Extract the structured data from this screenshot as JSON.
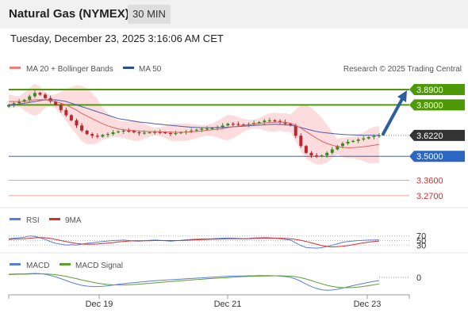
{
  "header": {
    "title": "Natural Gas (NYMEX)",
    "timeframe": "30 MIN"
  },
  "datetime": "Tuesday, December 23, 2025 3:16:06 AM CET",
  "legend": {
    "ma20": "MA 20 + Bollinger Bands",
    "ma50": "MA 50",
    "copyright": "Research © 2025 Trading Central"
  },
  "colors": {
    "resistance": "#4e9a06",
    "support": "#2b66c4",
    "target": "#d62d2d",
    "current": "#333333",
    "candle_up": "#3a8a22",
    "candle_down": "#b7282e",
    "ma20": "#e06060",
    "ma50": "#4a5fa8",
    "bands": "#fbd6d6",
    "rsi": "#5b7fd6",
    "rsi_ma": "#d62d2d",
    "macd": "#5b7fd6",
    "macd_signal": "#5ca02f",
    "arrow": "#2b5f9e"
  },
  "chart_data": [
    {
      "type": "line",
      "title": "",
      "x_ticks": [
        "Dec 19",
        "Dec 21",
        "Dec 23"
      ],
      "ylim": [
        3.2,
        3.95
      ],
      "levels": [
        {
          "label": "3.8900",
          "value": 3.89,
          "kind": "resistance"
        },
        {
          "label": "3.8000",
          "value": 3.8,
          "kind": "resistance"
        },
        {
          "label": "3.6220",
          "value": 3.622,
          "kind": "current"
        },
        {
          "label": "3.5000",
          "value": 3.5,
          "kind": "support"
        },
        {
          "label": "3.3600",
          "value": 3.36,
          "kind": "target"
        },
        {
          "label": "3.2700",
          "value": 3.27,
          "kind": "target"
        }
      ],
      "price": [
        3.8,
        3.81,
        3.82,
        3.83,
        3.85,
        3.87,
        3.86,
        3.84,
        3.82,
        3.8,
        3.77,
        3.74,
        3.71,
        3.68,
        3.65,
        3.63,
        3.62,
        3.615,
        3.625,
        3.63,
        3.64,
        3.645,
        3.65,
        3.648,
        3.64,
        3.635,
        3.638,
        3.64,
        3.642,
        3.64,
        3.636,
        3.632,
        3.635,
        3.64,
        3.645,
        3.65,
        3.655,
        3.66,
        3.662,
        3.665,
        3.67,
        3.68,
        3.69,
        3.688,
        3.686,
        3.684,
        3.688,
        3.694,
        3.7,
        3.708,
        3.71,
        3.706,
        3.7,
        3.69,
        3.68,
        3.62,
        3.56,
        3.52,
        3.505,
        3.5,
        3.505,
        3.52,
        3.54,
        3.56,
        3.575,
        3.585,
        3.59,
        3.598,
        3.604,
        3.612,
        3.618,
        3.622
      ],
      "series": [
        {
          "name": "MA 20 + Bollinger Bands",
          "values": [
            3.82,
            3.82,
            3.82,
            3.82,
            3.825,
            3.83,
            3.83,
            3.83,
            3.825,
            3.82,
            3.81,
            3.8,
            3.785,
            3.77,
            3.75,
            3.735,
            3.72,
            3.705,
            3.69,
            3.678,
            3.668,
            3.66,
            3.655,
            3.652,
            3.65,
            3.648,
            3.646,
            3.645,
            3.644,
            3.643,
            3.642,
            3.641,
            3.64,
            3.64,
            3.641,
            3.643,
            3.645,
            3.648,
            3.652,
            3.655,
            3.658,
            3.662,
            3.667,
            3.672,
            3.676,
            3.68,
            3.684,
            3.688,
            3.692,
            3.695,
            3.698,
            3.699,
            3.7,
            3.698,
            3.693,
            3.68,
            3.665,
            3.645,
            3.625,
            3.605,
            3.588,
            3.575,
            3.565,
            3.557,
            3.552,
            3.55,
            3.551,
            3.553,
            3.556,
            3.56,
            3.565,
            3.57
          ]
        },
        {
          "name": "MA 50",
          "values": [
            3.8,
            3.8,
            3.805,
            3.81,
            3.815,
            3.82,
            3.825,
            3.83,
            3.83,
            3.83,
            3.825,
            3.82,
            3.81,
            3.8,
            3.79,
            3.78,
            3.77,
            3.76,
            3.75,
            3.74,
            3.73,
            3.72,
            3.715,
            3.71,
            3.705,
            3.7,
            3.697,
            3.694,
            3.69,
            3.687,
            3.684,
            3.681,
            3.678,
            3.675,
            3.672,
            3.67,
            3.668,
            3.667,
            3.667,
            3.667,
            3.668,
            3.669,
            3.67,
            3.672,
            3.674,
            3.676,
            3.678,
            3.68,
            3.682,
            3.684,
            3.686,
            3.686,
            3.686,
            3.684,
            3.682,
            3.676,
            3.668,
            3.66,
            3.652,
            3.645,
            3.64,
            3.636,
            3.633,
            3.63,
            3.628,
            3.626,
            3.625,
            3.624,
            3.623,
            3.622,
            3.622,
            3.622
          ]
        }
      ]
    },
    {
      "type": "line",
      "title": "",
      "ylim": [
        0,
        100
      ],
      "y_ticks": [
        70,
        50,
        30
      ],
      "series": [
        {
          "name": "RSI",
          "values": [
            58,
            60,
            62,
            64,
            70,
            68,
            62,
            55,
            45,
            38,
            34,
            30,
            32,
            30,
            34,
            38,
            40,
            43,
            46,
            48,
            50,
            51,
            52,
            50,
            48,
            47,
            49,
            51,
            52,
            51,
            49,
            47,
            49,
            51,
            53,
            55,
            56,
            57,
            57,
            58,
            59,
            60,
            61,
            60,
            59,
            58,
            59,
            61,
            62,
            63,
            62,
            60,
            58,
            55,
            52,
            40,
            28,
            20,
            18,
            17,
            19,
            24,
            30,
            36,
            42,
            46,
            48,
            50,
            51,
            52,
            52,
            53
          ]
        },
        {
          "name": "9MA",
          "values": [
            55,
            56,
            57,
            58,
            60,
            62,
            63,
            62,
            59,
            55,
            50,
            45,
            41,
            37,
            35,
            34,
            34,
            35,
            37,
            39,
            41,
            44,
            46,
            48,
            49,
            49,
            49,
            49,
            50,
            50,
            50,
            50,
            50,
            50,
            51,
            52,
            53,
            54,
            55,
            56,
            56,
            57,
            58,
            58,
            58,
            58,
            58,
            59,
            59,
            60,
            60,
            60,
            60,
            59,
            58,
            55,
            51,
            46,
            40,
            34,
            28,
            24,
            22,
            23,
            25,
            28,
            32,
            36,
            40,
            43,
            46,
            48
          ]
        }
      ]
    },
    {
      "type": "line",
      "title": "",
      "y_ticks": [
        0
      ],
      "ylim": [
        -0.09,
        0.05
      ],
      "series": [
        {
          "name": "MACD",
          "values": [
            0.02,
            0.021,
            0.022,
            0.022,
            0.024,
            0.025,
            0.024,
            0.02,
            0.012,
            0.003,
            -0.008,
            -0.02,
            -0.032,
            -0.042,
            -0.05,
            -0.055,
            -0.058,
            -0.058,
            -0.056,
            -0.053,
            -0.049,
            -0.044,
            -0.04,
            -0.036,
            -0.033,
            -0.03,
            -0.027,
            -0.024,
            -0.021,
            -0.019,
            -0.017,
            -0.015,
            -0.013,
            -0.011,
            -0.009,
            -0.007,
            -0.005,
            -0.003,
            -0.001,
            0.001,
            0.003,
            0.005,
            0.007,
            0.008,
            0.009,
            0.009,
            0.01,
            0.01,
            0.011,
            0.011,
            0.011,
            0.01,
            0.008,
            0.005,
            0.0,
            -0.01,
            -0.025,
            -0.042,
            -0.058,
            -0.07,
            -0.078,
            -0.081,
            -0.08,
            -0.075,
            -0.068,
            -0.06,
            -0.052,
            -0.045,
            -0.038,
            -0.031,
            -0.025,
            -0.02
          ]
        },
        {
          "name": "MACD Signal",
          "values": [
            0.018,
            0.019,
            0.02,
            0.02,
            0.021,
            0.022,
            0.022,
            0.022,
            0.02,
            0.017,
            0.012,
            0.006,
            -0.001,
            -0.008,
            -0.016,
            -0.023,
            -0.03,
            -0.036,
            -0.041,
            -0.045,
            -0.047,
            -0.048,
            -0.048,
            -0.047,
            -0.045,
            -0.043,
            -0.04,
            -0.038,
            -0.035,
            -0.032,
            -0.029,
            -0.027,
            -0.024,
            -0.021,
            -0.019,
            -0.016,
            -0.014,
            -0.012,
            -0.009,
            -0.007,
            -0.005,
            -0.003,
            -0.001,
            0.001,
            0.003,
            0.005,
            0.006,
            0.007,
            0.008,
            0.009,
            0.009,
            0.01,
            0.01,
            0.009,
            0.008,
            0.004,
            -0.002,
            -0.01,
            -0.02,
            -0.031,
            -0.041,
            -0.05,
            -0.057,
            -0.062,
            -0.065,
            -0.065,
            -0.064,
            -0.061,
            -0.057,
            -0.052,
            -0.047,
            -0.042
          ]
        }
      ]
    }
  ]
}
